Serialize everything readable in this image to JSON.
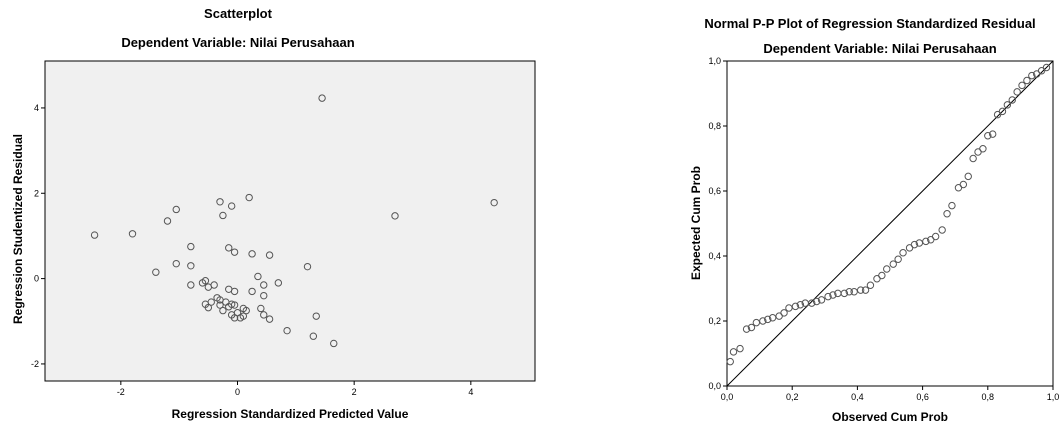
{
  "chart_data": [
    {
      "type": "scatter",
      "title": "Scatterplot",
      "subtitle": "Dependent Variable: Nilai Perusahaan",
      "xlabel": "Regression Standardized Predicted Value",
      "ylabel": "Regression Studentized Residual",
      "xlim": [
        -3.3,
        5.1
      ],
      "ylim": [
        -2.4,
        5.1
      ],
      "xticks": [
        -2,
        0,
        2,
        4
      ],
      "yticks": [
        -2,
        0,
        2,
        4
      ],
      "xtick_labels": [
        "-2",
        "0",
        "2",
        "4"
      ],
      "ytick_labels": [
        "-2",
        "0",
        "2",
        "4"
      ],
      "background": "#f0f0f0",
      "marker_color": "#555555",
      "points": [
        [
          1.45,
          4.23
        ],
        [
          4.4,
          1.78
        ],
        [
          2.7,
          1.47
        ],
        [
          0.2,
          1.9
        ],
        [
          -0.3,
          1.8
        ],
        [
          -0.1,
          1.7
        ],
        [
          -1.05,
          1.62
        ],
        [
          -0.25,
          1.48
        ],
        [
          -1.2,
          1.35
        ],
        [
          -1.8,
          1.05
        ],
        [
          -2.45,
          1.02
        ],
        [
          -0.8,
          0.75
        ],
        [
          -0.15,
          0.72
        ],
        [
          -0.05,
          0.62
        ],
        [
          0.25,
          0.58
        ],
        [
          0.55,
          0.55
        ],
        [
          -1.05,
          0.35
        ],
        [
          -0.8,
          0.3
        ],
        [
          1.2,
          0.28
        ],
        [
          -1.4,
          0.15
        ],
        [
          0.35,
          0.05
        ],
        [
          -0.55,
          -0.05
        ],
        [
          -0.6,
          -0.1
        ],
        [
          0.7,
          -0.1
        ],
        [
          -0.4,
          -0.15
        ],
        [
          0.45,
          -0.15
        ],
        [
          -0.8,
          -0.15
        ],
        [
          -0.5,
          -0.2
        ],
        [
          -0.15,
          -0.25
        ],
        [
          -0.05,
          -0.3
        ],
        [
          0.25,
          -0.3
        ],
        [
          0.45,
          -0.4
        ],
        [
          -0.35,
          -0.45
        ],
        [
          -0.3,
          -0.5
        ],
        [
          -0.45,
          -0.55
        ],
        [
          -0.55,
          -0.6
        ],
        [
          -0.2,
          -0.55
        ],
        [
          -0.1,
          -0.6
        ],
        [
          -0.3,
          -0.62
        ],
        [
          -0.05,
          -0.62
        ],
        [
          -0.15,
          -0.66
        ],
        [
          -0.5,
          -0.68
        ],
        [
          0.1,
          -0.7
        ],
        [
          0.4,
          -0.7
        ],
        [
          -0.25,
          -0.75
        ],
        [
          0.15,
          -0.75
        ],
        [
          0.0,
          -0.8
        ],
        [
          0.45,
          -0.85
        ],
        [
          -0.1,
          -0.85
        ],
        [
          0.1,
          -0.88
        ],
        [
          1.35,
          -0.88
        ],
        [
          -0.05,
          -0.92
        ],
        [
          0.05,
          -0.92
        ],
        [
          0.55,
          -0.95
        ],
        [
          0.85,
          -1.22
        ],
        [
          1.3,
          -1.35
        ],
        [
          1.65,
          -1.52
        ]
      ]
    },
    {
      "type": "scatter",
      "title": "Normal P-P Plot of Regression Standardized Residual",
      "subtitle": "Dependent Variable: Nilai Perusahaan",
      "xlabel": "Observed Cum Prob",
      "ylabel": "Expected Cum Prob",
      "xlim": [
        0,
        1
      ],
      "ylim": [
        0,
        1
      ],
      "xticks": [
        0,
        0.2,
        0.4,
        0.6,
        0.8,
        1.0
      ],
      "yticks": [
        0,
        0.2,
        0.4,
        0.6,
        0.8,
        1.0
      ],
      "xtick_labels": [
        "0,0",
        "0,2",
        "0,4",
        "0,6",
        "0,8",
        "1,0"
      ],
      "ytick_labels": [
        "0,0",
        "0,2",
        "0,4",
        "0,6",
        "0,8",
        "1,0"
      ],
      "reference_line": [
        [
          0,
          0
        ],
        [
          1,
          1
        ]
      ],
      "background": "#ffffff",
      "marker_color": "#555555",
      "points": [
        [
          0.01,
          0.075
        ],
        [
          0.02,
          0.105
        ],
        [
          0.04,
          0.115
        ],
        [
          0.06,
          0.175
        ],
        [
          0.075,
          0.18
        ],
        [
          0.09,
          0.195
        ],
        [
          0.11,
          0.2
        ],
        [
          0.125,
          0.205
        ],
        [
          0.14,
          0.21
        ],
        [
          0.16,
          0.215
        ],
        [
          0.175,
          0.225
        ],
        [
          0.19,
          0.24
        ],
        [
          0.21,
          0.245
        ],
        [
          0.225,
          0.25
        ],
        [
          0.24,
          0.255
        ],
        [
          0.26,
          0.255
        ],
        [
          0.275,
          0.26
        ],
        [
          0.29,
          0.265
        ],
        [
          0.31,
          0.275
        ],
        [
          0.325,
          0.28
        ],
        [
          0.34,
          0.285
        ],
        [
          0.36,
          0.285
        ],
        [
          0.375,
          0.29
        ],
        [
          0.39,
          0.29
        ],
        [
          0.41,
          0.295
        ],
        [
          0.425,
          0.295
        ],
        [
          0.44,
          0.31
        ],
        [
          0.46,
          0.33
        ],
        [
          0.475,
          0.34
        ],
        [
          0.49,
          0.36
        ],
        [
          0.51,
          0.375
        ],
        [
          0.525,
          0.39
        ],
        [
          0.54,
          0.41
        ],
        [
          0.56,
          0.425
        ],
        [
          0.575,
          0.435
        ],
        [
          0.59,
          0.44
        ],
        [
          0.61,
          0.445
        ],
        [
          0.625,
          0.45
        ],
        [
          0.64,
          0.46
        ],
        [
          0.66,
          0.48
        ],
        [
          0.675,
          0.53
        ],
        [
          0.69,
          0.555
        ],
        [
          0.71,
          0.61
        ],
        [
          0.725,
          0.62
        ],
        [
          0.74,
          0.645
        ],
        [
          0.755,
          0.7
        ],
        [
          0.77,
          0.72
        ],
        [
          0.785,
          0.73
        ],
        [
          0.8,
          0.77
        ],
        [
          0.815,
          0.775
        ],
        [
          0.83,
          0.835
        ],
        [
          0.845,
          0.845
        ],
        [
          0.86,
          0.865
        ],
        [
          0.875,
          0.88
        ],
        [
          0.89,
          0.905
        ],
        [
          0.905,
          0.925
        ],
        [
          0.92,
          0.94
        ],
        [
          0.935,
          0.955
        ],
        [
          0.95,
          0.96
        ],
        [
          0.965,
          0.97
        ],
        [
          0.98,
          0.98
        ]
      ]
    }
  ]
}
